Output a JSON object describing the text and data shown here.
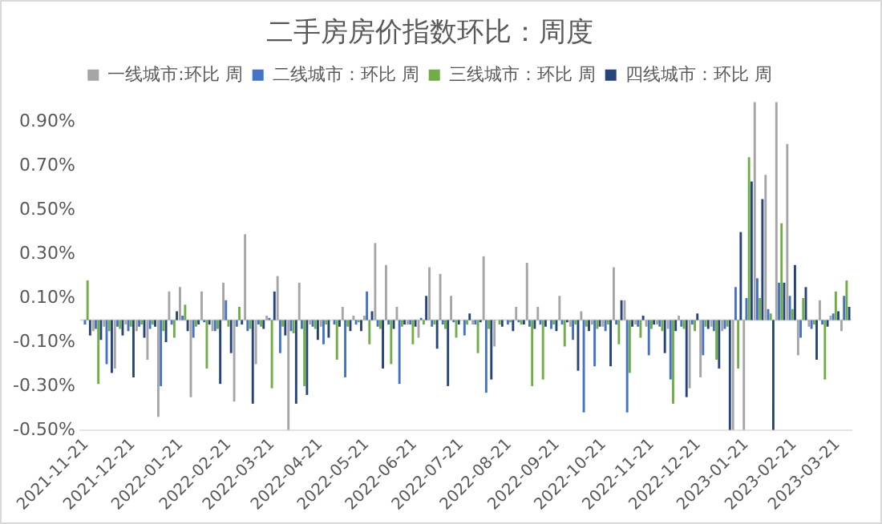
{
  "chart_data": {
    "type": "bar",
    "title": "二手房房价指数环比：周度",
    "legend": "top",
    "x": [
      "2021-11-21",
      "2021-11-28",
      "2021-12-05",
      "2021-12-12",
      "2021-12-19",
      "2021-12-26",
      "2022-01-02",
      "2022-01-09",
      "2022-01-16",
      "2022-01-23",
      "2022-01-30",
      "2022-02-06",
      "2022-02-13",
      "2022-02-20",
      "2022-02-27",
      "2022-03-06",
      "2022-03-13",
      "2022-03-20",
      "2022-03-27",
      "2022-04-03",
      "2022-04-10",
      "2022-04-17",
      "2022-04-24",
      "2022-05-01",
      "2022-05-08",
      "2022-05-15",
      "2022-05-22",
      "2022-05-29",
      "2022-06-05",
      "2022-06-12",
      "2022-06-19",
      "2022-06-26",
      "2022-07-03",
      "2022-07-10",
      "2022-07-17",
      "2022-07-24",
      "2022-07-31",
      "2022-08-07",
      "2022-08-14",
      "2022-08-21",
      "2022-08-28",
      "2022-09-04",
      "2022-09-11",
      "2022-09-18",
      "2022-09-25",
      "2022-10-02",
      "2022-10-09",
      "2022-10-16",
      "2022-10-23",
      "2022-10-30",
      "2022-11-06",
      "2022-11-13",
      "2022-11-20",
      "2022-11-27",
      "2022-12-04",
      "2022-12-11",
      "2022-12-18",
      "2022-12-25",
      "2023-01-01",
      "2023-01-08",
      "2023-01-15",
      "2023-01-22",
      "2023-01-29",
      "2023-02-05",
      "2023-02-12",
      "2023-02-19",
      "2023-02-26",
      "2023-03-05",
      "2023-03-12",
      "2023-03-19",
      "2023-03-26"
    ],
    "series": [
      {
        "name": "一线城市:环比 周",
        "color": "#a5a5a5",
        "values": [
          0,
          -0.05,
          -0.03,
          -0.22,
          -0.02,
          -0.05,
          -0.18,
          -0.44,
          0.13,
          0.15,
          -0.35,
          0.13,
          -0.05,
          0.17,
          -0.37,
          0.39,
          -0.2,
          0.02,
          0.2,
          -0.5,
          0.17,
          -0.02,
          -0.03,
          null,
          0.06,
          0.02,
          0.02,
          0.35,
          0.25,
          0.06,
          -0.02,
          -0.08,
          0.24,
          0.21,
          0.11,
          null,
          -0.02,
          0.29,
          -0.12,
          0,
          0.06,
          0.26,
          0.06,
          null,
          0.11,
          -0.03,
          0.04,
          -0.02,
          -0.03,
          0.24,
          0.09,
          -0.02,
          -0.03,
          -0.02,
          -0.04,
          0.02,
          -0.31,
          -0.26,
          -0.03,
          -0.05,
          -0.5,
          -0.5,
          0.99,
          0.66,
          0.99,
          0.8,
          -0.16,
          -0.03,
          0.09,
          0.02,
          -0.05
        ]
      },
      {
        "name": "二线城市：环比 周",
        "color": "#4472c4",
        "values": [
          -0.02,
          -0.04,
          -0.2,
          -0.03,
          -0.05,
          -0.03,
          -0.04,
          -0.3,
          -0.02,
          0.02,
          -0.08,
          -0.01,
          -0.05,
          0.09,
          -0.03,
          -0.05,
          -0.02,
          0.01,
          -0.15,
          -0.05,
          -0.04,
          -0.03,
          -0.11,
          -0.02,
          -0.26,
          -0.02,
          0.13,
          -0.03,
          -0.02,
          -0.29,
          -0.02,
          0.01,
          -0.03,
          -0.02,
          -0.01,
          -0.07,
          -0.02,
          -0.33,
          0,
          -0.02,
          -0.01,
          -0.03,
          -0.02,
          -0.04,
          -0.02,
          -0.09,
          -0.42,
          -0.21,
          -0.05,
          -0.02,
          -0.42,
          -0.03,
          -0.16,
          -0.03,
          -0.27,
          -0.03,
          -0.02,
          -0.16,
          -0.05,
          -0.04,
          0.15,
          0.1,
          0.19,
          0.05,
          0.17,
          0.11,
          -0.08,
          -0.04,
          -0.02,
          0.03,
          0.11
        ]
      },
      {
        "name": "三线城市：环比 周",
        "color": "#70ad47",
        "values": [
          0.18,
          -0.29,
          -0.05,
          -0.04,
          -0.03,
          -0.02,
          -0.02,
          -0.05,
          -0.08,
          0.07,
          -0.03,
          -0.22,
          -0.04,
          -0.03,
          0.06,
          -0.04,
          -0.03,
          -0.31,
          -0.03,
          -0.06,
          -0.3,
          -0.04,
          -0.02,
          -0.18,
          -0.03,
          -0.01,
          -0.11,
          -0.04,
          -0.2,
          -0.03,
          -0.11,
          -0.02,
          -0.02,
          -0.04,
          -0.08,
          -0.02,
          -0.15,
          -0.04,
          -0.02,
          -0.01,
          -0.02,
          -0.3,
          -0.27,
          -0.02,
          -0.12,
          -0.02,
          -0.03,
          -0.04,
          -0.02,
          -0.11,
          -0.24,
          -0.08,
          -0.04,
          -0.05,
          -0.38,
          -0.04,
          -0.05,
          -0.03,
          -0.18,
          -0.03,
          -0.22,
          0.74,
          0.1,
          0.03,
          0.44,
          0.05,
          0.1,
          -0.02,
          -0.27,
          0.13,
          0.18
        ]
      },
      {
        "name": "四线城市：环比 周",
        "color": "#264478",
        "values": [
          -0.07,
          -0.09,
          -0.24,
          -0.07,
          -0.26,
          -0.08,
          -0.03,
          -0.1,
          0.04,
          -0.05,
          -0.02,
          -0.02,
          -0.29,
          -0.15,
          -0.02,
          -0.38,
          -0.04,
          0.13,
          -0.07,
          -0.38,
          -0.34,
          -0.09,
          -0.08,
          -0.03,
          -0.05,
          -0.05,
          0.04,
          -0.22,
          -0.04,
          -0.02,
          -0.03,
          0.11,
          -0.13,
          -0.3,
          -0.02,
          0.03,
          -0.01,
          -0.27,
          -0.03,
          -0.05,
          -0.02,
          -0.04,
          -0.03,
          -0.05,
          -0.01,
          -0.23,
          -0.05,
          -0.03,
          -0.21,
          0.09,
          -0.03,
          0.02,
          -0.02,
          -0.15,
          -0.05,
          -0.35,
          0.03,
          -0.04,
          -0.22,
          -0.5,
          0.4,
          0.63,
          0.55,
          -0.5,
          0.17,
          0.25,
          0.15,
          -0.18,
          -0.03,
          0.04,
          0.06
        ]
      }
    ],
    "xlim": [
      "2021-11-17",
      "2023-03-30"
    ],
    "xticks": [
      "2021-11-21",
      "2021-12-21",
      "2022-01-21",
      "2022-02-21",
      "2022-03-21",
      "2022-04-21",
      "2022-05-21",
      "2022-06-21",
      "2022-07-21",
      "2022-08-21",
      "2022-09-21",
      "2022-10-21",
      "2022-11-21",
      "2022-12-21",
      "2023-01-21",
      "2023-02-21",
      "2023-03-21"
    ],
    "ylim": [
      -0.5,
      1.0
    ],
    "yticks": [
      {
        "value": -0.5,
        "label": "-0.50%"
      },
      {
        "value": -0.3,
        "label": "-0.30%"
      },
      {
        "value": -0.1,
        "label": "-0.10%"
      },
      {
        "value": 0.1,
        "label": "0.10%"
      },
      {
        "value": 0.3,
        "label": "0.30%"
      },
      {
        "value": 0.5,
        "label": "0.50%"
      },
      {
        "value": 0.7,
        "label": "0.70%"
      },
      {
        "value": 0.9,
        "label": "0.90%"
      }
    ],
    "grid": false
  }
}
